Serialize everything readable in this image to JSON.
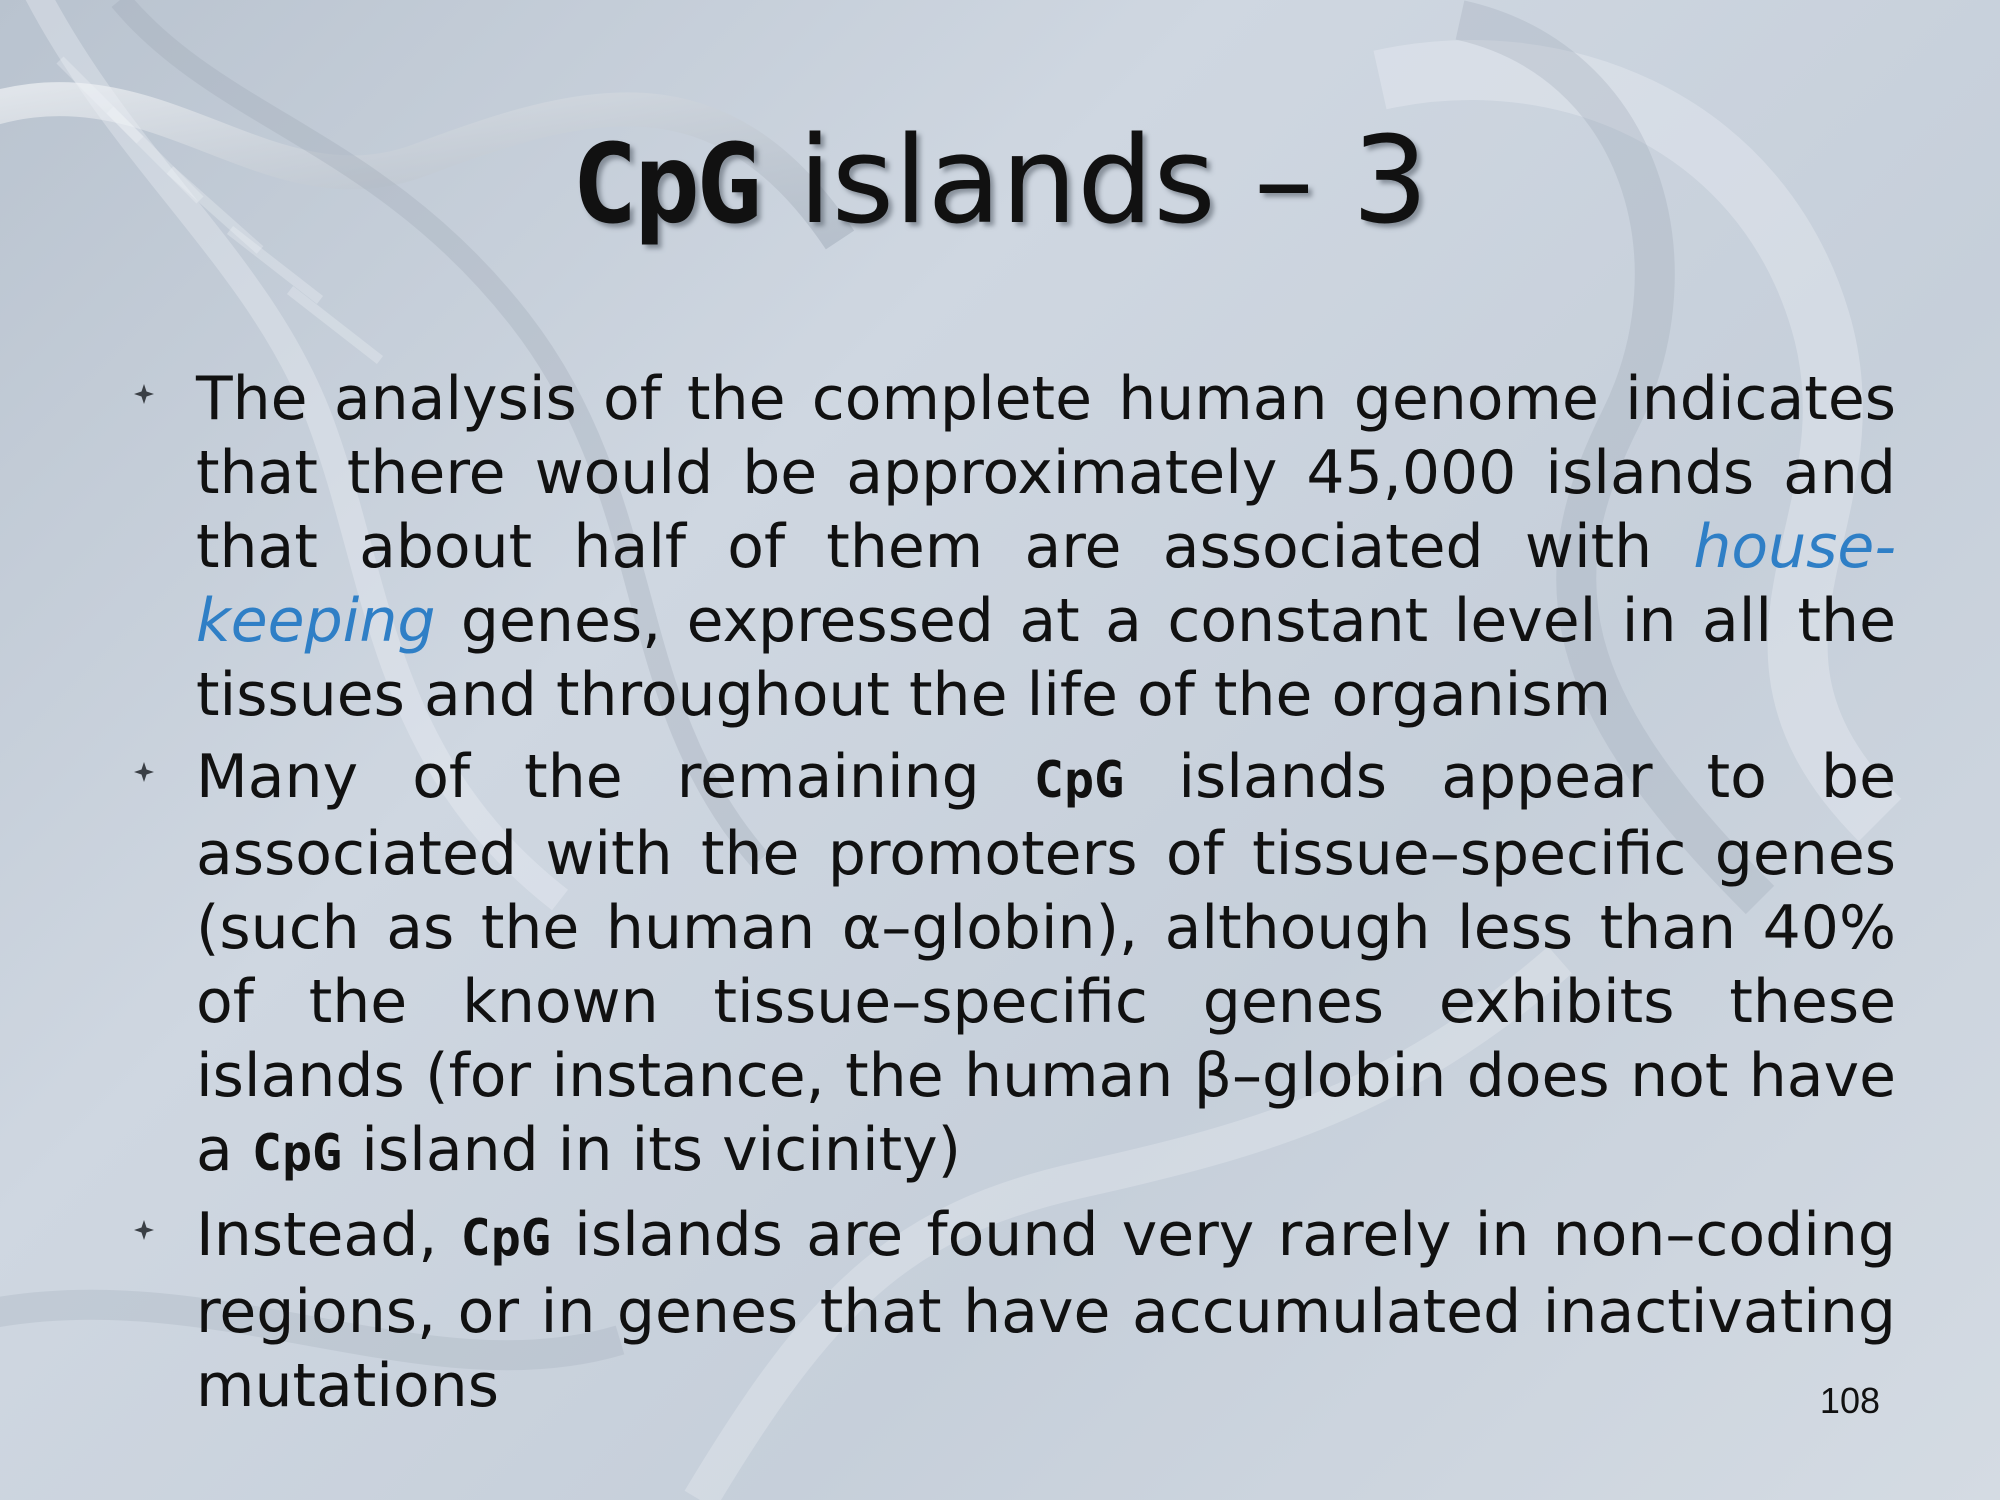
{
  "slide": {
    "title": {
      "mono": "CpG",
      "rest": "islands – 3"
    },
    "bullets": [
      {
        "segments": [
          {
            "t": "The analysis of the complete human genome indicates that there would be approximately 45,000 islands and that about half of them are associated with "
          },
          {
            "t": "house-keeping",
            "style": "hl"
          },
          {
            "t": " genes, expressed at a constant level in all the tissues and throughout the life of the organism"
          }
        ]
      },
      {
        "segments": [
          {
            "t": "Many of the remaining "
          },
          {
            "t": "CpG",
            "style": "mono"
          },
          {
            "t": " islands appear to be associated with the promoters of tissue–specific genes (such as the human α–globin), although less than 40% of the known tissue–specific genes exhibits these islands (for instance, the human β–globin does not have a "
          },
          {
            "t": "CpG",
            "style": "mono"
          },
          {
            "t": " island in its vicinity)"
          }
        ]
      },
      {
        "segments": [
          {
            "t": "Instead, "
          },
          {
            "t": "CpG",
            "style": "mono"
          },
          {
            "t": " islands are found very rarely in non–coding regions, or in genes that have accumulated inactivating mutations"
          }
        ]
      }
    ],
    "page_number": "108",
    "colors": {
      "text": "#111111",
      "highlight": "#2f7fc6",
      "background": "#c9d2dd"
    },
    "icons": {
      "bullet": "four-point-star-bullet-icon",
      "background": "dna-helix-background"
    }
  }
}
